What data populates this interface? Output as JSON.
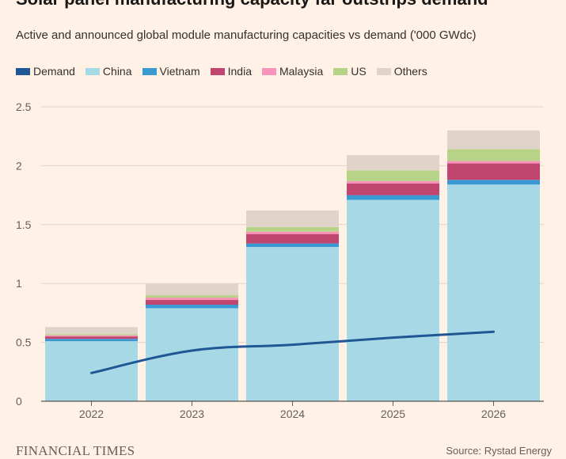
{
  "title": "Solar panel manufacturing capacity far outstrips demand",
  "subtitle": "Active and announced global module manufacturing capacities vs demand ('000 GWdc)",
  "footer": {
    "brand": "FINANCIAL TIMES",
    "source": "Source: Rystad Energy"
  },
  "chart_data": {
    "type": "bar",
    "stacked": true,
    "categories": [
      "2022",
      "2023",
      "2024",
      "2025",
      "2026"
    ],
    "series": [
      {
        "name": "China",
        "color": "#a6d8e6",
        "values": [
          0.51,
          0.79,
          1.31,
          1.71,
          1.84
        ]
      },
      {
        "name": "Vietnam",
        "color": "#3a98d3",
        "values": [
          0.02,
          0.03,
          0.03,
          0.04,
          0.04
        ]
      },
      {
        "name": "India",
        "color": "#c0466f",
        "values": [
          0.02,
          0.04,
          0.08,
          0.1,
          0.14
        ]
      },
      {
        "name": "Malaysia",
        "color": "#f993b9",
        "values": [
          0.01,
          0.02,
          0.02,
          0.02,
          0.02
        ]
      },
      {
        "name": "US",
        "color": "#b7d387",
        "values": [
          0.01,
          0.02,
          0.04,
          0.09,
          0.1
        ]
      },
      {
        "name": "Others",
        "color": "#dfd3ca",
        "values": [
          0.06,
          0.1,
          0.14,
          0.13,
          0.16
        ]
      }
    ],
    "line": {
      "name": "Demand",
      "color": "#1f5794",
      "x": [
        2022,
        2023,
        2024,
        2025,
        2026
      ],
      "values": [
        0.24,
        0.43,
        0.48,
        0.54,
        0.59
      ]
    },
    "legend": [
      "Demand",
      "China",
      "Vietnam",
      "India",
      "Malaysia",
      "US",
      "Others"
    ],
    "yticks": [
      "0",
      "0.5",
      "1",
      "1.5",
      "2",
      "2.5"
    ],
    "ylim": [
      0,
      2.5
    ],
    "grid": true,
    "legend_position": "top-left"
  }
}
